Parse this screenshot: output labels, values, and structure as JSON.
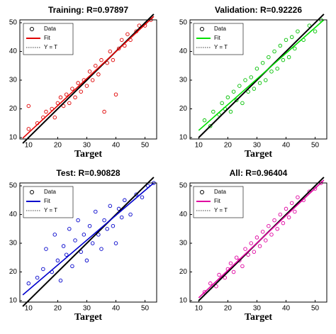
{
  "chart_data": [
    {
      "type": "scatter",
      "title": "Training: R=0.97897",
      "xlabel": "Target",
      "xlim": [
        7,
        54
      ],
      "ylim": [
        9.5,
        51
      ],
      "xticks": [
        10,
        20,
        30,
        40,
        50
      ],
      "yticks": [
        10,
        20,
        30,
        40,
        50
      ],
      "series": [
        {
          "name": "Data",
          "color": "#e00000",
          "kind": "points",
          "x": [
            10,
            10,
            13,
            15,
            16,
            18,
            19,
            20,
            21,
            22,
            23,
            24,
            25,
            26,
            27,
            28,
            29,
            30,
            31,
            32,
            33,
            34,
            35,
            36,
            37,
            38,
            39,
            40,
            41,
            42,
            43,
            44,
            45,
            47,
            48,
            50,
            52
          ],
          "values": [
            13,
            21,
            15,
            17,
            19,
            20,
            17,
            22,
            24,
            21,
            25,
            22,
            27,
            24,
            29,
            26,
            30,
            28,
            33,
            30,
            35,
            32,
            37,
            19,
            36,
            40,
            37,
            25,
            41,
            44,
            42,
            46,
            44,
            47,
            49,
            49,
            51
          ]
        },
        {
          "name": "Fit",
          "color": "#e00000",
          "kind": "line",
          "x": [
            8,
            53
          ],
          "values": [
            9.8,
            52.2
          ]
        },
        {
          "name": "Y = T",
          "color": "#000000",
          "kind": "line",
          "x": [
            8,
            53
          ],
          "values": [
            8,
            53
          ]
        }
      ]
    },
    {
      "type": "scatter",
      "title": "Validation: R=0.92226",
      "xlabel": "Target",
      "xlim": [
        7,
        54
      ],
      "ylim": [
        9.5,
        51
      ],
      "xticks": [
        10,
        20,
        30,
        40,
        50
      ],
      "yticks": [
        10,
        20,
        30,
        40,
        50
      ],
      "series": [
        {
          "name": "Data",
          "color": "#00c000",
          "kind": "points",
          "x": [
            12,
            14,
            15,
            17,
            18,
            19,
            20,
            21,
            22,
            23,
            24,
            25,
            26,
            27,
            28,
            29,
            30,
            31,
            32,
            33,
            34,
            35,
            36,
            37,
            38,
            39,
            40,
            41,
            42,
            43,
            44,
            46,
            48,
            50,
            52
          ],
          "values": [
            16,
            14,
            19,
            18,
            22,
            20,
            24,
            19,
            26,
            23,
            28,
            22,
            30,
            26,
            31,
            27,
            34,
            29,
            36,
            30,
            38,
            33,
            40,
            34,
            42,
            37,
            44,
            38,
            45,
            41,
            47,
            44,
            49,
            47,
            51
          ]
        },
        {
          "name": "Fit",
          "color": "#00e000",
          "kind": "line",
          "x": [
            10,
            53
          ],
          "values": [
            12.5,
            51
          ]
        },
        {
          "name": "Y = T",
          "color": "#000000",
          "kind": "line",
          "x": [
            10,
            53
          ],
          "values": [
            10,
            53
          ]
        }
      ]
    },
    {
      "type": "scatter",
      "title": "Test: R=0.90828",
      "xlabel": "Target",
      "xlim": [
        7,
        54
      ],
      "ylim": [
        9.5,
        51
      ],
      "xticks": [
        10,
        20,
        30,
        40,
        50
      ],
      "yticks": [
        10,
        20,
        30,
        40,
        50
      ],
      "series": [
        {
          "name": "Data",
          "color": "#0000cc",
          "kind": "points",
          "x": [
            10,
            13,
            15,
            16,
            18,
            19,
            20,
            21,
            22,
            23,
            24,
            25,
            26,
            27,
            28,
            29,
            30,
            31,
            32,
            33,
            34,
            35,
            36,
            37,
            38,
            39,
            40,
            41,
            42,
            43,
            45,
            47,
            49,
            51,
            53
          ],
          "values": [
            16,
            18,
            21,
            28,
            20,
            33,
            24,
            17,
            29,
            26,
            35,
            22,
            31,
            38,
            27,
            33,
            24,
            36,
            30,
            41,
            33,
            28,
            38,
            35,
            43,
            36,
            30,
            42,
            39,
            45,
            40,
            47,
            46,
            50,
            51
          ]
        },
        {
          "name": "Fit",
          "color": "#0000cc",
          "kind": "line",
          "x": [
            8,
            53
          ],
          "values": [
            12,
            51
          ]
        },
        {
          "name": "Y = T",
          "color": "#000000",
          "kind": "line",
          "x": [
            8,
            53
          ],
          "values": [
            8,
            53
          ]
        }
      ]
    },
    {
      "type": "scatter",
      "title": "All: R=0.96404",
      "xlabel": "Target",
      "xlim": [
        7,
        54
      ],
      "ylim": [
        9.5,
        51
      ],
      "xticks": [
        10,
        20,
        30,
        40,
        50
      ],
      "yticks": [
        10,
        20,
        30,
        40,
        50
      ],
      "series": [
        {
          "name": "Data",
          "color": "#e000a0",
          "kind": "points",
          "x": [
            12,
            14,
            16,
            17,
            19,
            20,
            21,
            22,
            23,
            24,
            25,
            26,
            27,
            28,
            29,
            30,
            31,
            32,
            33,
            34,
            35,
            36,
            37,
            38,
            39,
            40,
            41,
            42,
            43,
            44,
            46,
            48,
            50,
            52
          ],
          "values": [
            13,
            16,
            15,
            19,
            18,
            21,
            23,
            20,
            25,
            24,
            22,
            28,
            26,
            30,
            27,
            32,
            29,
            34,
            31,
            36,
            33,
            38,
            35,
            40,
            37,
            42,
            39,
            44,
            41,
            46,
            45,
            48,
            49,
            51
          ]
        },
        {
          "name": "Fit",
          "color": "#e000a0",
          "kind": "line",
          "x": [
            10,
            53
          ],
          "values": [
            11,
            52
          ]
        },
        {
          "name": "Y = T",
          "color": "#000000",
          "kind": "line",
          "x": [
            10,
            53
          ],
          "values": [
            10,
            53
          ]
        }
      ]
    }
  ]
}
